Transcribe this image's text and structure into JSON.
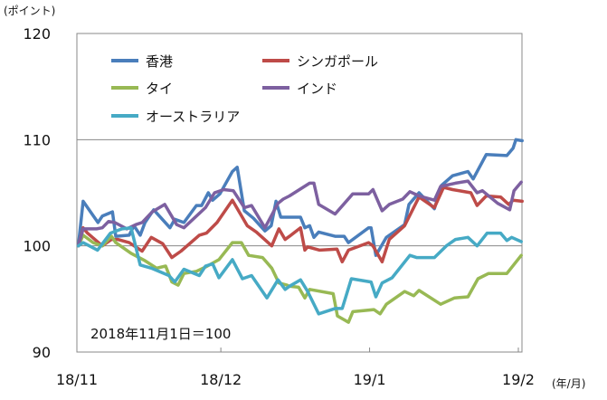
{
  "chart_data": {
    "type": "line",
    "ylabel": "(ポイント)",
    "xlabel": "(年/月)",
    "annotation": "2018年11月1日＝100",
    "ylim": [
      90,
      120
    ],
    "yticks": [
      "120",
      "110",
      "100",
      "90"
    ],
    "ytick_values": [
      120,
      110,
      100,
      90
    ],
    "gridlines": [
      110,
      100
    ],
    "xlim_days": [
      0,
      92
    ],
    "xticks": [
      {
        "label": "18/11",
        "day": 0
      },
      {
        "label": "18/12",
        "day": 30
      },
      {
        "label": "19/1",
        "day": 61
      },
      {
        "label": "19/2",
        "day": 92
      }
    ],
    "legend_placement": "top-left",
    "series": [
      {
        "name": "香港",
        "color": "#4a7ebb",
        "points": [
          [
            0.3,
            100
          ],
          [
            1.3,
            104.2
          ],
          [
            4.4,
            102.2
          ],
          [
            5.3,
            102.8
          ],
          [
            7.4,
            103.2
          ],
          [
            8.1,
            100.9
          ],
          [
            10.9,
            101
          ],
          [
            11.9,
            101.9
          ],
          [
            13.2,
            101
          ],
          [
            14.2,
            102.2
          ],
          [
            16,
            103.4
          ],
          [
            19.4,
            101.7
          ],
          [
            20.4,
            102.5
          ],
          [
            22.3,
            102.2
          ],
          [
            24.9,
            103.8
          ],
          [
            26,
            103.8
          ],
          [
            27.4,
            105
          ],
          [
            28.3,
            104.3
          ],
          [
            29.8,
            104.9
          ],
          [
            32.4,
            107
          ],
          [
            33.4,
            107.4
          ],
          [
            34.9,
            103.3
          ],
          [
            36.8,
            102.6
          ],
          [
            39.2,
            101.4
          ],
          [
            40.5,
            101.9
          ],
          [
            41.5,
            104.2
          ],
          [
            42.5,
            102.7
          ],
          [
            46.6,
            102.7
          ],
          [
            47.5,
            101.7
          ],
          [
            48.5,
            101.9
          ],
          [
            49.4,
            100.8
          ],
          [
            50.4,
            101.3
          ],
          [
            53.8,
            100.9
          ],
          [
            55.7,
            100.9
          ],
          [
            56.6,
            100.3
          ],
          [
            60.8,
            101.7
          ],
          [
            61.3,
            101.7
          ],
          [
            62.3,
            99.1
          ],
          [
            64.5,
            100.8
          ],
          [
            68.3,
            102
          ],
          [
            69.2,
            103.9
          ],
          [
            71.3,
            105
          ],
          [
            74.5,
            103.5
          ],
          [
            76,
            105.7
          ],
          [
            78.3,
            106.6
          ],
          [
            81.5,
            107
          ],
          [
            82.6,
            106.3
          ],
          [
            85.3,
            108.6
          ],
          [
            89.6,
            108.5
          ],
          [
            90.9,
            109.2
          ],
          [
            91.5,
            110
          ],
          [
            92.8,
            109.9
          ]
        ]
      },
      {
        "name": "シンガポール",
        "color": "#be4b48",
        "points": [
          [
            0.3,
            100
          ],
          [
            1.3,
            101.7
          ],
          [
            2.2,
            101.2
          ],
          [
            5.3,
            100
          ],
          [
            7.2,
            100.6
          ],
          [
            8.5,
            100.6
          ],
          [
            10.9,
            100.3
          ],
          [
            13.6,
            99.5
          ],
          [
            15.5,
            100.8
          ],
          [
            17.9,
            100.2
          ],
          [
            19.8,
            98.9
          ],
          [
            21.7,
            99.5
          ],
          [
            25.5,
            101
          ],
          [
            27,
            101.2
          ],
          [
            29.2,
            102.2
          ],
          [
            32.4,
            104.3
          ],
          [
            35.5,
            101.9
          ],
          [
            37.4,
            101.3
          ],
          [
            40.6,
            100
          ],
          [
            42.1,
            101.6
          ],
          [
            43.4,
            100.6
          ],
          [
            44.3,
            100.9
          ],
          [
            46.6,
            101.7
          ],
          [
            47.5,
            99.6
          ],
          [
            48.1,
            99.9
          ],
          [
            50.6,
            99.6
          ],
          [
            54.2,
            99.7
          ],
          [
            55.3,
            98.5
          ],
          [
            56.6,
            99.6
          ],
          [
            60.8,
            100.3
          ],
          [
            61.7,
            100
          ],
          [
            63.6,
            98.5
          ],
          [
            65.1,
            100.6
          ],
          [
            68.3,
            101.9
          ],
          [
            71.3,
            104.6
          ],
          [
            74.5,
            103.6
          ],
          [
            76.4,
            105.5
          ],
          [
            78.3,
            105.3
          ],
          [
            82.1,
            105
          ],
          [
            83.4,
            103.8
          ],
          [
            85.3,
            104.7
          ],
          [
            88.3,
            104.6
          ],
          [
            90,
            103.9
          ],
          [
            90.9,
            104.3
          ],
          [
            92.8,
            104.2
          ]
        ]
      },
      {
        "name": "タイ",
        "color": "#98b954",
        "points": [
          [
            0.3,
            100
          ],
          [
            1.3,
            101
          ],
          [
            3.4,
            100.3
          ],
          [
            5.3,
            100
          ],
          [
            7.2,
            100.9
          ],
          [
            8.1,
            100.3
          ],
          [
            11.3,
            99.3
          ],
          [
            14.2,
            98.6
          ],
          [
            16.6,
            97.9
          ],
          [
            18.5,
            98.1
          ],
          [
            19.8,
            96.6
          ],
          [
            21.1,
            96.3
          ],
          [
            22.3,
            97.4
          ],
          [
            24.9,
            97.6
          ],
          [
            26.8,
            98
          ],
          [
            29.6,
            98.7
          ],
          [
            32.4,
            100.3
          ],
          [
            34.3,
            100.3
          ],
          [
            35.8,
            99.1
          ],
          [
            38.7,
            98.9
          ],
          [
            40.6,
            97.9
          ],
          [
            42.1,
            96.5
          ],
          [
            43.8,
            96.3
          ],
          [
            44.3,
            96.2
          ],
          [
            46.2,
            96.1
          ],
          [
            47.5,
            95.1
          ],
          [
            48.5,
            95.9
          ],
          [
            53.4,
            95.5
          ],
          [
            54.3,
            93.4
          ],
          [
            56.6,
            92.8
          ],
          [
            57.5,
            93.8
          ],
          [
            61.9,
            94
          ],
          [
            63.2,
            93.6
          ],
          [
            64.5,
            94.5
          ],
          [
            68.3,
            95.7
          ],
          [
            70.2,
            95.3
          ],
          [
            71.3,
            95.8
          ],
          [
            75.8,
            94.5
          ],
          [
            78.7,
            95.1
          ],
          [
            81.5,
            95.2
          ],
          [
            83.6,
            96.9
          ],
          [
            85.8,
            97.4
          ],
          [
            89.6,
            97.4
          ],
          [
            92.6,
            99.1
          ]
        ]
      },
      {
        "name": "インド",
        "color": "#7d60a0",
        "points": [
          [
            0.3,
            100
          ],
          [
            1.3,
            101.6
          ],
          [
            4.1,
            101.6
          ],
          [
            5.3,
            101.7
          ],
          [
            6.6,
            102.3
          ],
          [
            7.9,
            102.2
          ],
          [
            10.4,
            101.6
          ],
          [
            12.3,
            102
          ],
          [
            13.6,
            102.2
          ],
          [
            15.7,
            103.2
          ],
          [
            18.3,
            103.9
          ],
          [
            20.8,
            102
          ],
          [
            22.3,
            101.7
          ],
          [
            26.8,
            103.6
          ],
          [
            28.7,
            105
          ],
          [
            30.6,
            105.3
          ],
          [
            32.6,
            105.2
          ],
          [
            34.9,
            103.6
          ],
          [
            36.4,
            103.8
          ],
          [
            39.2,
            101.7
          ],
          [
            41.9,
            104
          ],
          [
            43,
            104.4
          ],
          [
            44.3,
            104.7
          ],
          [
            48.5,
            105.9
          ],
          [
            49.4,
            105.9
          ],
          [
            50.4,
            103.9
          ],
          [
            53.8,
            103
          ],
          [
            57.5,
            104.9
          ],
          [
            60.8,
            104.9
          ],
          [
            61.7,
            105.3
          ],
          [
            63.6,
            103.3
          ],
          [
            65.1,
            103.9
          ],
          [
            67.9,
            104.4
          ],
          [
            69.4,
            105.1
          ],
          [
            71.3,
            104.7
          ],
          [
            74.5,
            104.3
          ],
          [
            75.8,
            105.6
          ],
          [
            78.9,
            105.9
          ],
          [
            81.5,
            106.1
          ],
          [
            83.4,
            105
          ],
          [
            84.5,
            105.2
          ],
          [
            87.7,
            104
          ],
          [
            90.2,
            103.4
          ],
          [
            91.1,
            105.2
          ],
          [
            92.6,
            106
          ]
        ]
      },
      {
        "name": "オーストラリア",
        "color": "#46aac5",
        "points": [
          [
            0.3,
            100
          ],
          [
            1.3,
            100.3
          ],
          [
            4.3,
            99.6
          ],
          [
            7,
            101.2
          ],
          [
            9.4,
            101.6
          ],
          [
            11.3,
            101.7
          ],
          [
            13.2,
            98.2
          ],
          [
            15.5,
            97.9
          ],
          [
            19.2,
            97.2
          ],
          [
            20.4,
            96.6
          ],
          [
            22.3,
            97.8
          ],
          [
            25.5,
            97.2
          ],
          [
            26.8,
            98.1
          ],
          [
            28.3,
            98.3
          ],
          [
            29.6,
            97
          ],
          [
            32.4,
            98.7
          ],
          [
            34.5,
            96.9
          ],
          [
            36.4,
            97.2
          ],
          [
            39.6,
            95.1
          ],
          [
            41.9,
            96.8
          ],
          [
            43.4,
            95.9
          ],
          [
            44.3,
            96.2
          ],
          [
            46.6,
            96.8
          ],
          [
            48.1,
            95.7
          ],
          [
            50.4,
            93.6
          ],
          [
            53.8,
            94.1
          ],
          [
            55.3,
            94.1
          ],
          [
            57.2,
            96.9
          ],
          [
            61.3,
            96.6
          ],
          [
            62.3,
            95.2
          ],
          [
            63.6,
            96.5
          ],
          [
            65.7,
            97
          ],
          [
            69.4,
            99.1
          ],
          [
            70.8,
            98.9
          ],
          [
            74.5,
            98.9
          ],
          [
            77,
            100
          ],
          [
            78.9,
            100.6
          ],
          [
            81.5,
            100.8
          ],
          [
            83.4,
            100
          ],
          [
            85.5,
            101.2
          ],
          [
            88.3,
            101.2
          ],
          [
            89.6,
            100.5
          ],
          [
            90.6,
            100.8
          ],
          [
            92.6,
            100.4
          ]
        ]
      }
    ]
  }
}
